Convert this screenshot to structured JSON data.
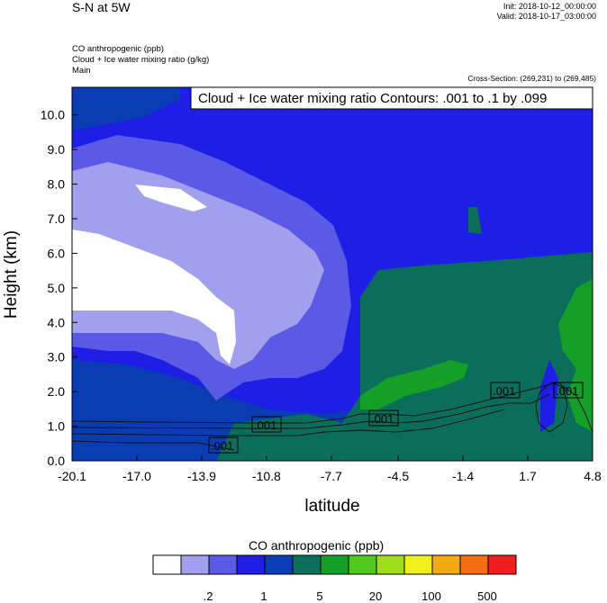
{
  "header": {
    "title": "S-N at 5W",
    "init": "Init: 2018-10-12_00:00:00",
    "valid": "Valid: 2018-10-17_03:00:00",
    "field1": "CO anthropogenic   (ppb)",
    "field2": "Cloud + Ice water mixing ratio   (g/kg)",
    "field3": "Main",
    "cross_section": "Cross-Section: (269,231) to (269,485)"
  },
  "chart_data": {
    "type": "heatmap",
    "title": "Cloud + Ice water mixing ratio Contours: .001 to .1 by .099",
    "xlabel": "latitude",
    "ylabel": "Height (km)",
    "xlim": [
      -20.1,
      4.8
    ],
    "ylim": [
      0.0,
      10.8
    ],
    "x_ticks": [
      "-20.1",
      "-17.0",
      "-13.9",
      "-10.8",
      "-7.7",
      "-4.5",
      "-1.4",
      "1.7",
      "4.8"
    ],
    "y_ticks": [
      "0.0",
      "1.0",
      "2.0",
      "3.0",
      "4.0",
      "5.0",
      "6.0",
      "7.0",
      "8.0",
      "9.0",
      "10.0"
    ],
    "contour_labels": [
      ".001",
      ".001",
      ".001",
      ".001",
      ".001"
    ],
    "colorbar": {
      "title": "CO anthropogenic  (ppb)",
      "colors": [
        "#ffffff",
        "#a0a0ee",
        "#5a5ae6",
        "#1e1ee6",
        "#0a3cb4",
        "#0a6e5a",
        "#14a028",
        "#50c81e",
        "#a0dc1e",
        "#f0f01e",
        "#f5aa14",
        "#f56e14",
        "#f01e1e"
      ],
      "labels": [
        ".2",
        "1",
        "5",
        "20",
        "100",
        "500"
      ]
    }
  }
}
